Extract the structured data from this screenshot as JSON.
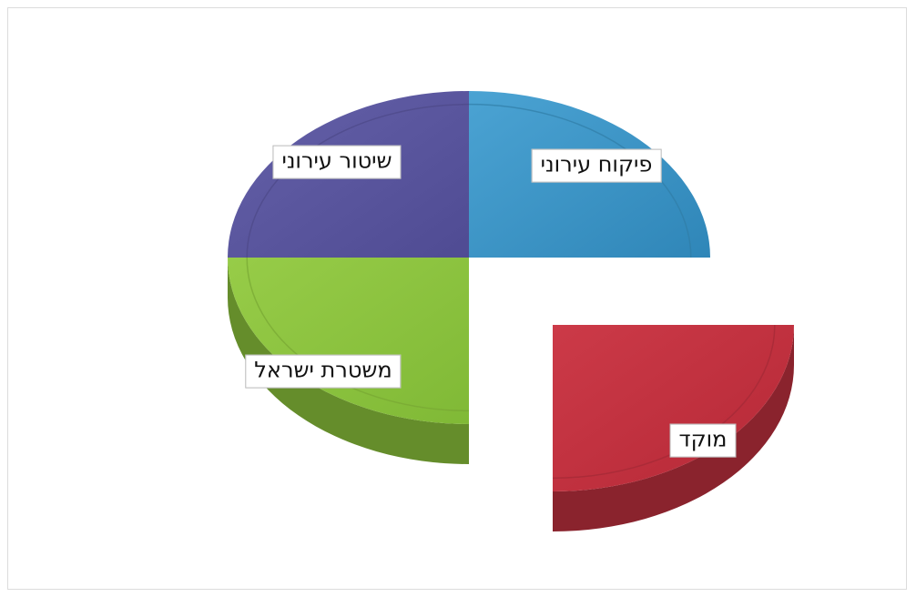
{
  "chart_data": {
    "type": "pie",
    "style": "3d-exploded",
    "legend": "none",
    "slices": [
      {
        "label": "פיקוח עירוני",
        "value": 25,
        "color": "#3a93c5",
        "exploded": false
      },
      {
        "label": "מוקד",
        "value": 25,
        "color": "#c0303f",
        "exploded": true
      },
      {
        "label": "משטרת ישראל",
        "value": 25,
        "color": "#8cc43c",
        "exploded": false
      },
      {
        "label": "שיטור עירוני",
        "value": 25,
        "color": "#5a569f",
        "exploded": false
      }
    ]
  }
}
